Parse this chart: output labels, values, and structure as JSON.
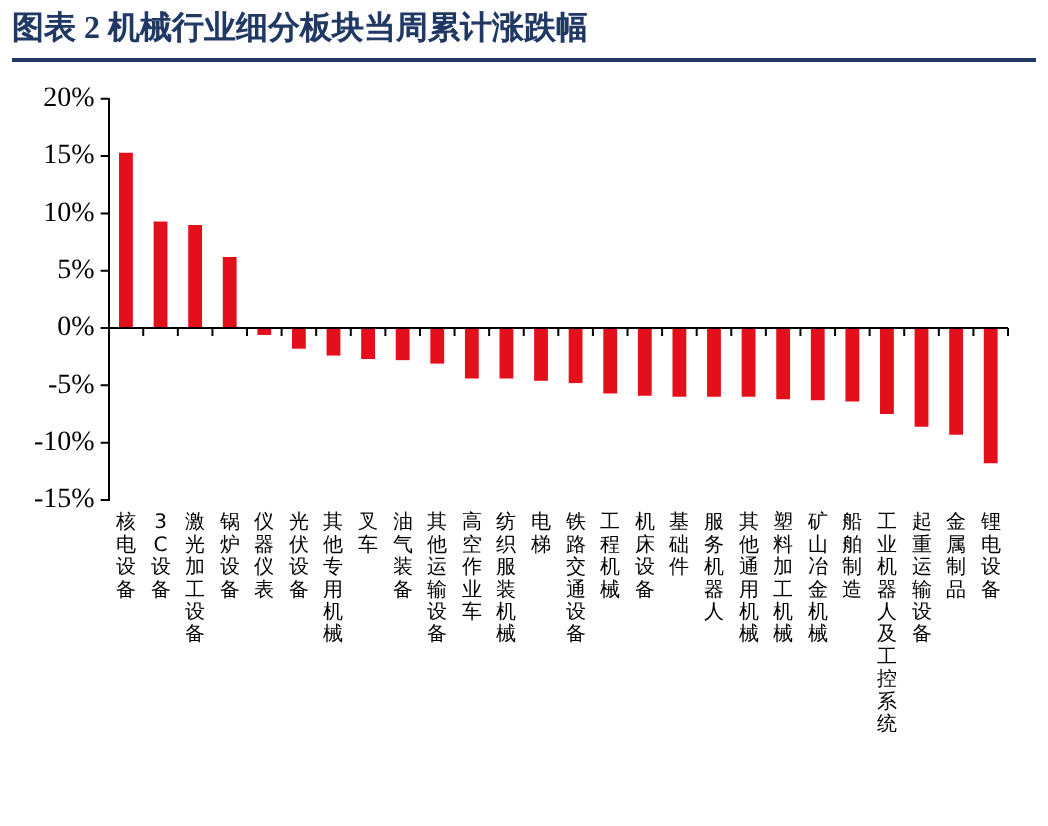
{
  "chart_data": {
    "type": "bar",
    "title": "图表 2    机械行业细分板块当周累计涨跌幅",
    "categories": [
      "核电设备",
      "3C设备",
      "激光加工设备",
      "锅炉设备",
      "仪器仪表",
      "光伏设备",
      "其他专用机械",
      "叉车",
      "油气装备",
      "其他运输设备",
      "高空作业车",
      "纺织服装机械",
      "电梯",
      "铁路交通设备",
      "工程机械",
      "机床设备",
      "基础件",
      "服务机器人",
      "其他通用机械",
      "塑料加工机械",
      "矿山冶金机械",
      "船舶制造",
      "工业机器人及工控系统",
      "起重运输设备",
      "金属制品",
      "锂电设备"
    ],
    "values": [
      15.3,
      9.3,
      9.0,
      6.2,
      -0.6,
      -1.8,
      -2.4,
      -2.7,
      -2.8,
      -3.1,
      -4.4,
      -4.4,
      -4.6,
      -4.8,
      -5.7,
      -5.9,
      -6.0,
      -6.0,
      -6.0,
      -6.2,
      -6.3,
      -6.4,
      -7.5,
      -8.6,
      -9.3,
      -11.8
    ],
    "color": "#e3101b",
    "ylim": [
      -15,
      20
    ],
    "yticks": [
      {
        "value": -15,
        "label": "-15%"
      },
      {
        "value": -10,
        "label": "-10%"
      },
      {
        "value": -5,
        "label": "-5%"
      },
      {
        "value": 0,
        "label": "0%"
      },
      {
        "value": 5,
        "label": "5%"
      },
      {
        "value": 10,
        "label": "10%"
      },
      {
        "value": 15,
        "label": "15%"
      },
      {
        "value": 20,
        "label": "20%"
      }
    ],
    "legend": false
  }
}
